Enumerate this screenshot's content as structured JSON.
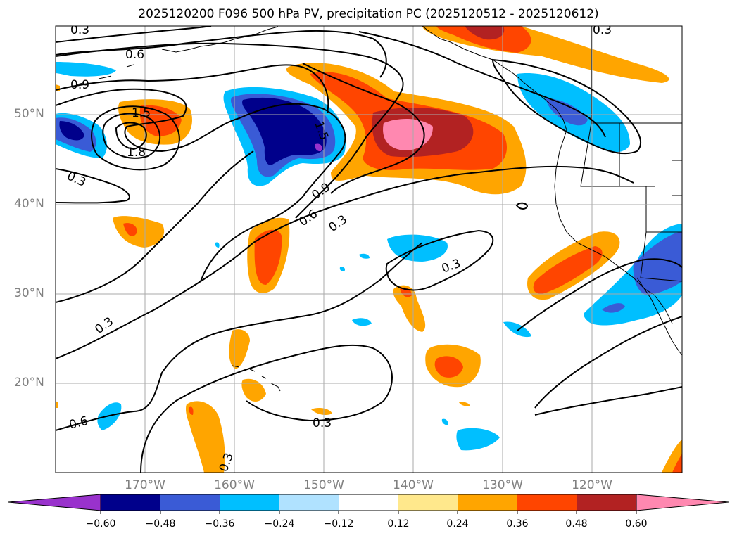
{
  "title": "2025120200 F096 500 hPa PV, precipitation PC (2025120512 - 2025120612)",
  "lat_labels": [
    "50°N",
    "40°N",
    "30°N",
    "20°N"
  ],
  "lon_labels": [
    "170°W",
    "160°W",
    "150°W",
    "140°W",
    "130°W",
    "120°W"
  ],
  "colorbar": {
    "ticks": [
      "−0.60",
      "−0.48",
      "−0.36",
      "−0.24",
      "−0.12",
      "0.12",
      "0.24",
      "0.36",
      "0.48",
      "0.60"
    ],
    "colors": [
      "#9932cc",
      "#00008b",
      "#3a5bd6",
      "#00bfff",
      "#b0e2ff",
      "#ffffff",
      "#ffe88c",
      "#ffa500",
      "#ff4500",
      "#b22222",
      "#ff88b0"
    ]
  },
  "contour_labels": [
    "0.3",
    "0.6",
    "0.9",
    "1.5",
    "1.8",
    "0.3",
    "0.9",
    "0.6",
    "0.3",
    "0.3",
    "0.3",
    "0.3",
    "0.6",
    "0.3",
    "1.5",
    "0.3"
  ]
}
